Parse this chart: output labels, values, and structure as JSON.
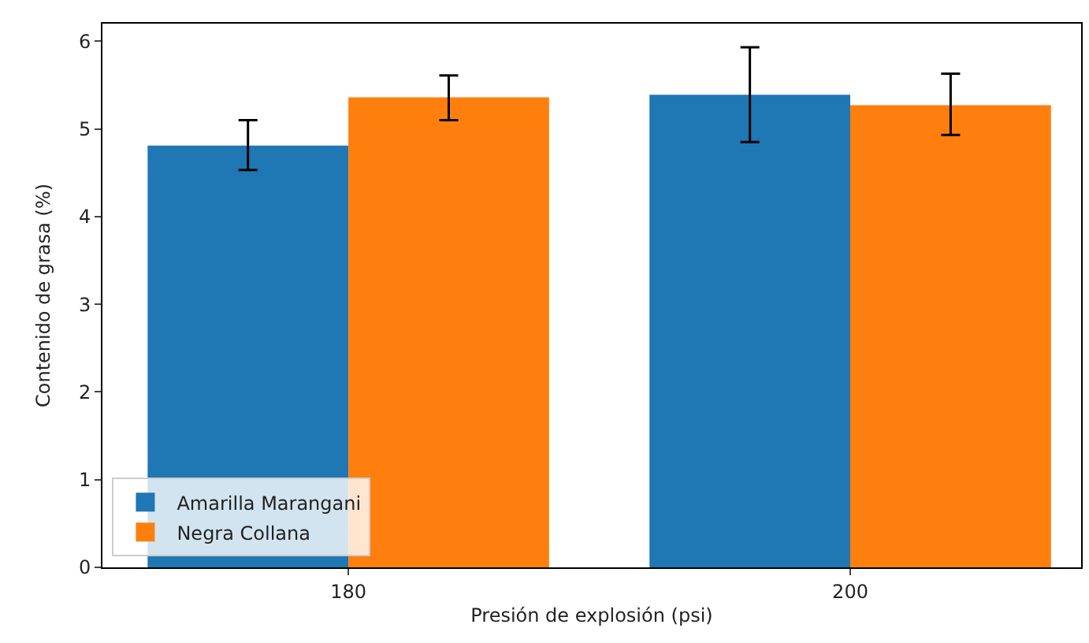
{
  "chart_data": {
    "type": "bar",
    "xlabel": "Presión de explosión (psi)",
    "ylabel": "Contenido de grasa (%)",
    "categories": [
      "180",
      "200"
    ],
    "series": [
      {
        "name": "Amarilla Marangani",
        "color": "#1f77b4",
        "values": [
          4.81,
          5.39
        ],
        "errors": [
          [
            4.53,
            5.1
          ],
          [
            4.85,
            5.93
          ]
        ]
      },
      {
        "name": "Negra Collana",
        "color": "#ff7f0e",
        "values": [
          5.36,
          5.27
        ],
        "errors": [
          [
            5.1,
            5.61
          ],
          [
            4.93,
            5.63
          ]
        ]
      }
    ],
    "ylim": [
      0,
      6.2
    ],
    "yticks": [
      0,
      1,
      2,
      3,
      4,
      5,
      6
    ],
    "legend": "bottom left"
  }
}
